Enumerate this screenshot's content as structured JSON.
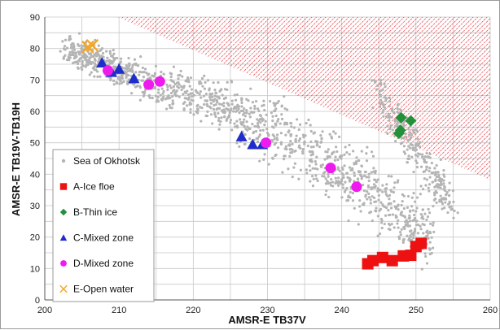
{
  "chart_data": {
    "type": "scatter",
    "xlabel": "AMSR-E TB37V",
    "ylabel": "AMSR-E TB19V-TB19H",
    "xlim": [
      200,
      260
    ],
    "ylim": [
      0,
      90
    ],
    "x_ticks": [
      "200",
      "210",
      "220",
      "230",
      "240",
      "250",
      "260"
    ],
    "y_ticks": [
      "0",
      "10",
      "20",
      "30",
      "40",
      "50",
      "60",
      "70",
      "80",
      "90"
    ],
    "grid": true,
    "legend_position": "left-center",
    "hatched_region": {
      "polygon": [
        [
          209.8,
          90
        ],
        [
          260,
          90
        ],
        [
          260,
          38.2
        ]
      ],
      "color": "#e0202a"
    },
    "background_cloud": {
      "name": "Sea of Okhotsk",
      "color": "#b4b4b4",
      "bands": [
        {
          "x_start": 203,
          "x_end": 212,
          "y_start": 80,
          "y_end": 71,
          "spread": 4
        },
        {
          "x_start": 212,
          "x_end": 226,
          "y_start": 71,
          "y_end": 60,
          "spread": 6
        },
        {
          "x_start": 226,
          "x_end": 240,
          "y_start": 60,
          "y_end": 42,
          "spread": 9
        },
        {
          "x_start": 240,
          "x_end": 252,
          "y_start": 42,
          "y_end": 20,
          "spread": 9
        },
        {
          "x_start": 245,
          "x_end": 255,
          "y_start": 65,
          "y_end": 30,
          "spread": 6
        }
      ]
    },
    "series": [
      {
        "name": "A-Ice floe",
        "marker": "square",
        "color": "#ee1111",
        "points": [
          [
            243.5,
            11.5
          ],
          [
            244.2,
            12.5
          ],
          [
            245.5,
            13.5
          ],
          [
            246.8,
            12.5
          ],
          [
            248.3,
            14
          ],
          [
            249.3,
            14.2
          ],
          [
            250.0,
            17
          ],
          [
            250.7,
            18
          ]
        ]
      },
      {
        "name": "B-Thin ice",
        "marker": "diamond",
        "color": "#22913a",
        "points": [
          [
            248.0,
            58
          ],
          [
            249.3,
            57
          ],
          [
            247.7,
            53
          ],
          [
            247.9,
            54
          ]
        ]
      },
      {
        "name": "C-Mixed zone",
        "marker": "triangle",
        "color": "#1f2dcc",
        "points": [
          [
            207.7,
            75.5
          ],
          [
            209.0,
            72.5
          ],
          [
            210.0,
            73.5
          ],
          [
            212.0,
            70.5
          ],
          [
            226.5,
            52
          ],
          [
            228.0,
            49.5
          ],
          [
            229.3,
            49.5
          ]
        ]
      },
      {
        "name": "D-Mixed zone",
        "marker": "circle",
        "color": "#ee1aee",
        "points": [
          [
            208.5,
            73
          ],
          [
            214.0,
            68.5
          ],
          [
            215.5,
            69.5
          ],
          [
            229.8,
            50
          ],
          [
            238.5,
            42
          ],
          [
            242.0,
            36
          ]
        ]
      },
      {
        "name": "E-Open water",
        "marker": "x",
        "color": "#f5a623",
        "points": [
          [
            205.8,
            80.5
          ],
          [
            206.4,
            81.0
          ]
        ]
      }
    ]
  }
}
